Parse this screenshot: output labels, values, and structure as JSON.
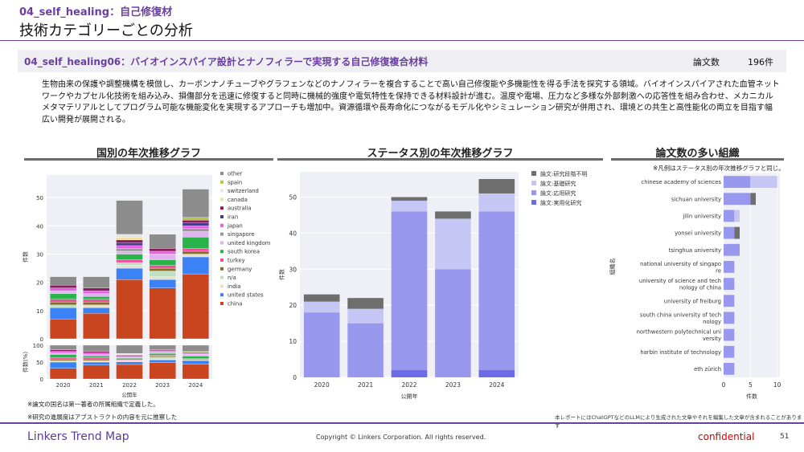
{
  "header": {
    "category": "04_self_healing：自己修復材",
    "page_title": "技術カテゴリーごとの分析"
  },
  "topic": {
    "title": "04_self_healing06：バイオインスパイア設計とナノフィラーで実現する自己修復複合材料",
    "count_label": "論文数",
    "count_value": "196件"
  },
  "description": "生物由来の保護や調整機構を模倣し、カーボンナノチューブやグラフェンなどのナノフィラーを複合することで高い自己修復能や多機能性を得る手法を探究する領域。バイオインスパイアされた血管ネットワークやカプセル化技術を組み込み、損傷部分を迅速に修復すると同時に機械的強度や電気特性を保持できる材料設計が進む。温度や電場、圧力など多様な外部刺激への応答性を組み合わせ、メカニカルメタマテリアルとしてプログラム可能な機能変化を実現するアプローチも増加中。資源循環や長寿命化につながるモデル化やシミュレーション研究が併用され、環境との共生と高性能化の両立を目指す幅広い開発が展開される。",
  "sections": {
    "country": "国別の年次推移グラフ",
    "status": "ステータス別の年次推移グラフ",
    "orgs": "論文数の多い組織"
  },
  "notes": {
    "org_legend": "※凡例はステータス別の年次推移グラフと同じ。",
    "country_def": "※論文の国名は第一著者の所属組織で定義した。",
    "status_def": "※研究の進展度はアブストラクトの内容を元に推察した",
    "llm": "本レポートにはChatGPTなどのLLMにより生成された文章やそれを編集した文章が含まれることがあります"
  },
  "footer": {
    "brand": "Linkers Trend Map",
    "copyright": "Copyright © Linkers Corporation. All rights reserved.",
    "confidential": "confidential",
    "page": "51"
  },
  "colors": {
    "accent": "#6b3fa0",
    "other": "#8c8c8c",
    "spain": "#b5c93a",
    "switzerland": "#e6e6e6",
    "canada": "#f5df9e",
    "australia": "#8b1a5e",
    "iran": "#4a3c8c",
    "japan": "#e65fe6",
    "singapore": "#9a9a9a",
    "united_kingdom": "#e0b3f0",
    "south_korea": "#2ab34a",
    "turkey": "#f54ba0",
    "germany": "#8b6b2a",
    "n_a": "#c0e0c0",
    "india": "#e8e0c8",
    "united_states": "#3b82f6",
    "china": "#c94520",
    "status_unknown": "#6e6e6e",
    "status_basic": "#c6c6f5",
    "status_applied": "#9898ee",
    "status_practical": "#6b6be8"
  },
  "chart_data": [
    {
      "type": "bar",
      "stacked": true,
      "title": "国別の年次推移グラフ",
      "xlabel": "公開年",
      "ylabel": "件数",
      "categories": [
        "2020",
        "2021",
        "2022",
        "2023",
        "2024"
      ],
      "ylim": [
        0,
        58
      ],
      "yticks": [
        0,
        10,
        20,
        30,
        40,
        50
      ],
      "legend": [
        "other",
        "spain",
        "switzerland",
        "canada",
        "australia",
        "iran",
        "japan",
        "singapore",
        "united kingdom",
        "south korea",
        "turkey",
        "germany",
        "n/a",
        "india",
        "united states",
        "china"
      ],
      "series": [
        {
          "name": "china",
          "key": "china",
          "values": [
            7,
            9,
            21,
            18,
            23
          ]
        },
        {
          "name": "united states",
          "key": "united_states",
          "values": [
            4,
            2,
            4,
            3,
            6
          ]
        },
        {
          "name": "india",
          "key": "india",
          "values": [
            0,
            1,
            1,
            1,
            1
          ]
        },
        {
          "name": "n/a",
          "key": "n_a",
          "values": [
            1,
            0,
            1,
            2,
            0
          ]
        },
        {
          "name": "germany",
          "key": "germany",
          "values": [
            1,
            1,
            0,
            1,
            1
          ]
        },
        {
          "name": "turkey",
          "key": "turkey",
          "values": [
            1,
            1,
            1,
            1,
            1
          ]
        },
        {
          "name": "south korea",
          "key": "south_korea",
          "values": [
            2,
            1,
            2,
            2,
            4
          ]
        },
        {
          "name": "united kingdom",
          "key": "united_kingdom",
          "values": [
            1,
            1,
            1,
            2,
            2
          ]
        },
        {
          "name": "singapore",
          "key": "singapore",
          "values": [
            0,
            0,
            1,
            0,
            1
          ]
        },
        {
          "name": "japan",
          "key": "japan",
          "values": [
            1,
            1,
            1,
            1,
            1
          ]
        },
        {
          "name": "iran",
          "key": "iran",
          "values": [
            0,
            0,
            1,
            0,
            1
          ]
        },
        {
          "name": "australia",
          "key": "australia",
          "values": [
            1,
            1,
            1,
            1,
            1
          ]
        },
        {
          "name": "canada",
          "key": "canada",
          "values": [
            0,
            0,
            1,
            0,
            0
          ]
        },
        {
          "name": "switzerland",
          "key": "switzerland",
          "values": [
            0,
            0,
            1,
            0,
            0
          ]
        },
        {
          "name": "spain",
          "key": "spain",
          "values": [
            0,
            0,
            0,
            0,
            1
          ]
        },
        {
          "name": "other",
          "key": "other",
          "values": [
            3,
            4,
            12,
            5,
            10
          ]
        }
      ]
    },
    {
      "type": "bar",
      "stacked": true,
      "title": "",
      "xlabel": "",
      "ylabel": "件数(%)",
      "categories": [
        "2020",
        "2021",
        "2022",
        "2023",
        "2024"
      ],
      "ylim": [
        0,
        100
      ],
      "yticks": [
        0,
        50,
        100
      ],
      "percent_of": 0
    },
    {
      "type": "bar",
      "stacked": true,
      "title": "ステータス別の年次推移グラフ",
      "xlabel": "公開年",
      "ylabel": "件数",
      "categories": [
        "2020",
        "2021",
        "2022",
        "2023",
        "2024"
      ],
      "ylim": [
        0,
        57
      ],
      "yticks": [
        0,
        10,
        20,
        30,
        40,
        50
      ],
      "series": [
        {
          "name": "論文:実用化研究",
          "key": "status_practical",
          "values": [
            0,
            0,
            2,
            0,
            2
          ]
        },
        {
          "name": "論文:応用研究",
          "key": "status_applied",
          "values": [
            18,
            15,
            44,
            30,
            44
          ]
        },
        {
          "name": "論文:基礎研究",
          "key": "status_basic",
          "values": [
            3,
            4,
            3,
            14,
            5
          ]
        },
        {
          "name": "論文:研究段階不明",
          "key": "status_unknown",
          "values": [
            2,
            3,
            1,
            2,
            4
          ]
        }
      ]
    },
    {
      "type": "bar",
      "orientation": "horizontal",
      "stacked": true,
      "title": "論文数の多い組織",
      "xlabel": "件数",
      "ylabel": "組織名",
      "xlim": [
        0,
        10.5
      ],
      "xticks": [
        0,
        5,
        10
      ],
      "categories": [
        "chinese academy of sciences",
        "sichuan university",
        "jilin university",
        "yonsei university",
        "tsinghua university",
        "national university of singapore",
        "university of science and technology of china",
        "university of freiburg",
        "south china university of technology",
        "northwestern polytechnical university",
        "harbin institute of technology",
        "eth zürich"
      ],
      "category_lines": [
        [
          "chinese academy of sciences"
        ],
        [
          "sichuan university"
        ],
        [
          "jilin university"
        ],
        [
          "yonsei university"
        ],
        [
          "tsinghua university"
        ],
        [
          "national university of singapo",
          "re"
        ],
        [
          "university of science and tech",
          "nology of china"
        ],
        [
          "university of freiburg"
        ],
        [
          "south china university of tech",
          "nology"
        ],
        [
          "northwestern polytechnical uni",
          "versity"
        ],
        [
          "harbin institute of technology"
        ],
        [
          "eth zürich"
        ]
      ],
      "series": [
        {
          "name": "論文:応用研究",
          "key": "status_applied",
          "values": [
            5,
            5,
            2,
            2,
            3,
            2,
            2,
            2,
            2,
            2,
            2,
            2
          ]
        },
        {
          "name": "論文:基礎研究",
          "key": "status_basic",
          "values": [
            5,
            0,
            1,
            0,
            0,
            0,
            0,
            0,
            0,
            0,
            0,
            0
          ]
        },
        {
          "name": "論文:研究段階不明",
          "key": "status_unknown",
          "values": [
            0,
            1,
            0,
            1,
            0,
            0,
            0,
            0,
            0,
            0,
            0,
            0
          ]
        }
      ]
    }
  ]
}
